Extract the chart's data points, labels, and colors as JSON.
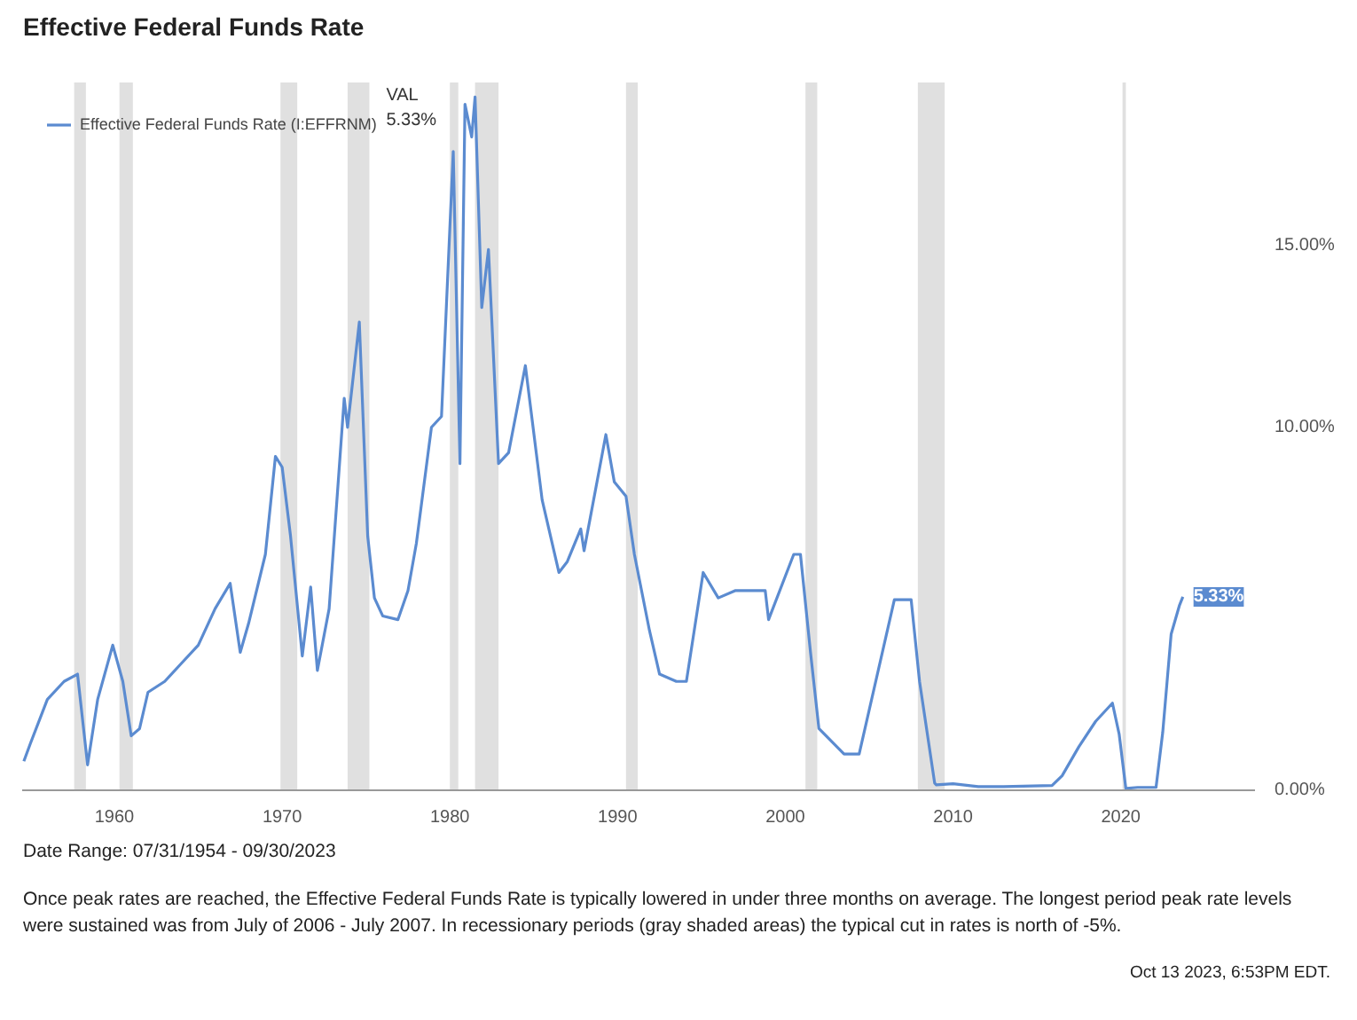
{
  "chart_data": {
    "type": "line",
    "title": "Effective Federal Funds Rate",
    "x": [
      1954.6,
      1955,
      1956,
      1957,
      1957.8,
      1958.4,
      1959,
      1959.9,
      1960.5,
      1961,
      1961.5,
      1962,
      1963,
      1964,
      1965,
      1966,
      1966.9,
      1967.5,
      1968,
      1969,
      1969.6,
      1970,
      1970.5,
      1971.2,
      1971.7,
      1972.1,
      1972.8,
      1973.7,
      1973.9,
      1974.6,
      1975.1,
      1975.5,
      1976,
      1976.9,
      1977.5,
      1978,
      1978.9,
      1979.5,
      1980.2,
      1980.6,
      1980.9,
      1981.3,
      1981.5,
      1981.9,
      1982.3,
      1982.9,
      1983.5,
      1984.5,
      1985.5,
      1986.5,
      1987,
      1987.8,
      1988,
      1989.3,
      1989.8,
      1990.5,
      1991,
      1991.9,
      1992.5,
      1993.5,
      1994.1,
      1995.1,
      1996,
      1997,
      1998.8,
      1999,
      2000.5,
      2000.9,
      2001.5,
      2002,
      2003.5,
      2004.4,
      2006.5,
      2007.5,
      2008,
      2008.9,
      2009,
      2010,
      2011.5,
      2013,
      2015.9,
      2016.5,
      2017.5,
      2018.5,
      2019.5,
      2019.9,
      2020.3,
      2021,
      2022.1,
      2022.5,
      2023,
      2023.5,
      2023.7
    ],
    "series": [
      {
        "name": "Effective Federal Funds Rate (I:EFFRNM)",
        "color": "#5b8bd0",
        "values": [
          0.8,
          1.3,
          2.5,
          3.0,
          3.2,
          0.7,
          2.5,
          4.0,
          3.0,
          1.5,
          1.7,
          2.7,
          3.0,
          3.5,
          4.0,
          5.0,
          5.7,
          3.8,
          4.6,
          6.5,
          9.2,
          8.9,
          7.0,
          3.7,
          5.6,
          3.3,
          5.0,
          10.8,
          10.0,
          12.9,
          7.0,
          5.3,
          4.8,
          4.7,
          5.5,
          6.8,
          10.0,
          10.3,
          17.6,
          9.0,
          18.9,
          18.0,
          19.1,
          13.3,
          14.9,
          9.0,
          9.3,
          11.7,
          8.0,
          6.0,
          6.3,
          7.2,
          6.6,
          9.8,
          8.5,
          8.1,
          6.5,
          4.4,
          3.2,
          3.0,
          3.0,
          6.0,
          5.3,
          5.5,
          5.5,
          4.7,
          6.5,
          6.5,
          3.8,
          1.7,
          1.0,
          1.0,
          5.25,
          5.25,
          3.0,
          0.2,
          0.15,
          0.18,
          0.1,
          0.1,
          0.13,
          0.4,
          1.2,
          1.9,
          2.4,
          1.55,
          0.05,
          0.08,
          0.08,
          1.6,
          4.3,
          5.1,
          5.33
        ]
      }
    ],
    "xlim": [
      1954.5,
      2028
    ],
    "xticks": [
      1960,
      1970,
      1980,
      1990,
      2000,
      2010,
      2020
    ],
    "ylim": [
      0,
      19.5
    ],
    "yticks": [
      {
        "value": 0,
        "label": "0.00%"
      },
      {
        "value": 10,
        "label": "10.00%"
      },
      {
        "value": 15,
        "label": "15.00%"
      }
    ],
    "bands": [
      {
        "axis": "x",
        "from": 1957.6,
        "to": 1958.3,
        "color": "#e0e0e0"
      },
      {
        "axis": "x",
        "from": 1960.3,
        "to": 1961.1,
        "color": "#e0e0e0"
      },
      {
        "axis": "x",
        "from": 1969.9,
        "to": 1970.9,
        "color": "#e0e0e0"
      },
      {
        "axis": "x",
        "from": 1973.9,
        "to": 1975.2,
        "color": "#e0e0e0"
      },
      {
        "axis": "x",
        "from": 1980.0,
        "to": 1980.5,
        "color": "#e0e0e0"
      },
      {
        "axis": "x",
        "from": 1981.5,
        "to": 1982.9,
        "color": "#e0e0e0"
      },
      {
        "axis": "x",
        "from": 1990.5,
        "to": 1991.2,
        "color": "#e0e0e0"
      },
      {
        "axis": "x",
        "from": 2001.2,
        "to": 2001.9,
        "color": "#e0e0e0"
      },
      {
        "axis": "x",
        "from": 2007.9,
        "to": 2009.5,
        "color": "#e0e0e0"
      },
      {
        "axis": "x",
        "from": 2020.1,
        "to": 2020.3,
        "color": "#e0e0e0"
      }
    ],
    "annotations": [
      "VAL",
      "5.33%",
      {
        "text": "5.33%",
        "x": 2023.7,
        "y": 5.33
      },
      "Date Range: 07/31/1954 - 09/30/2023",
      "Once peak rates are reached, the Effective Federal Funds Rate is typically lowered in under three months on average. The longest period peak rate levels were sustained was from July of 2006 - July 2007. In recessionary periods (gray shaded areas) the typical cut in rates is north of -5%.",
      "Oct 13 2023, 6:53PM EDT."
    ],
    "legend": "top left",
    "grid": false
  }
}
